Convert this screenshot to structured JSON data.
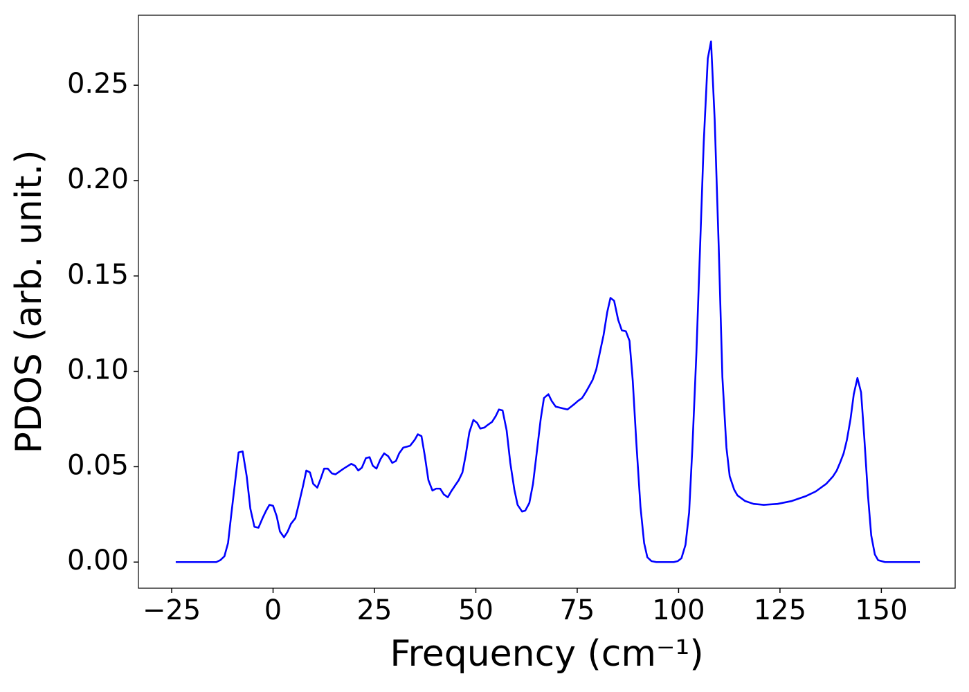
{
  "chart_data": {
    "type": "line",
    "xlabel": "Frequency (cm⁻¹)",
    "ylabel": "PDOS (arb. unit.)",
    "color": "#0000ff",
    "x": [
      -24,
      -14,
      -13,
      -12,
      -11.1,
      -10.3,
      -9.2,
      -8.5,
      -7.5,
      -6.5,
      -5.6,
      -4.6,
      -3.6,
      -2.6,
      -1.7,
      -0.9,
      0,
      0.9,
      1.7,
      2.7,
      3.6,
      4.4,
      5.5,
      6.3,
      7.4,
      8.2,
      9.1,
      9.9,
      10.9,
      11.8,
      12.6,
      13.5,
      14.5,
      15.4,
      16.4,
      17.4,
      19.3,
      20.2,
      21,
      21.9,
      22.9,
      23.8,
      24.6,
      25.5,
      26.5,
      27.4,
      28.4,
      29.4,
      30.3,
      31.1,
      32.1,
      33,
      33.8,
      34.9,
      35.7,
      36.6,
      37.4,
      38.3,
      39.3,
      40.2,
      41.2,
      42.1,
      43.1,
      43.9,
      45,
      45.8,
      46.7,
      47.5,
      48.4,
      49.4,
      50.3,
      51.1,
      52.1,
      53,
      54,
      54.9,
      55.7,
      56.6,
      57.6,
      58.5,
      59.5,
      60.3,
      61.4,
      62.2,
      63.2,
      64.1,
      65,
      66,
      66.8,
      67.9,
      68.7,
      69.7,
      71.6,
      72.6,
      73.5,
      74.4,
      75.2,
      76.2,
      77.1,
      77.9,
      78.8,
      79.7,
      80.5,
      81.5,
      82.4,
      83.2,
      84.1,
      85.1,
      86,
      87,
      87.9,
      88.7,
      89.6,
      90.6,
      91.5,
      92.3,
      93.3,
      94.5,
      98.8,
      99.8,
      100.7,
      101.7,
      102.6,
      103.4,
      104.4,
      105.3,
      106.2,
      107.2,
      108,
      108.9,
      109.9,
      110.8,
      111.8,
      112.6,
      113.7,
      114.5,
      116.4,
      118.5,
      121,
      124.4,
      127.9,
      131.3,
      133.8,
      136.4,
      138.1,
      139,
      139.8,
      140.7,
      141.5,
      142.4,
      143.2,
      144.1,
      145,
      145.8,
      146.7,
      147.5,
      148.4,
      149.2,
      150.9,
      159.5
    ],
    "values": [
      0,
      0,
      0.001,
      0.003,
      0.01,
      0.025,
      0.045,
      0.0575,
      0.058,
      0.045,
      0.028,
      0.0185,
      0.018,
      0.023,
      0.027,
      0.03,
      0.0295,
      0.024,
      0.016,
      0.013,
      0.016,
      0.02,
      0.023,
      0.03,
      0.04,
      0.048,
      0.047,
      0.041,
      0.039,
      0.044,
      0.049,
      0.049,
      0.0465,
      0.046,
      0.0475,
      0.049,
      0.0515,
      0.0505,
      0.048,
      0.0495,
      0.0545,
      0.055,
      0.0505,
      0.049,
      0.054,
      0.057,
      0.0555,
      0.052,
      0.053,
      0.057,
      0.06,
      0.0605,
      0.061,
      0.064,
      0.067,
      0.066,
      0.056,
      0.043,
      0.0375,
      0.0385,
      0.0385,
      0.0355,
      0.034,
      0.037,
      0.0405,
      0.043,
      0.047,
      0.056,
      0.068,
      0.0745,
      0.073,
      0.07,
      0.0705,
      0.072,
      0.0735,
      0.0765,
      0.08,
      0.0795,
      0.069,
      0.052,
      0.038,
      0.03,
      0.0265,
      0.027,
      0.031,
      0.041,
      0.057,
      0.075,
      0.086,
      0.088,
      0.0845,
      0.0815,
      0.0805,
      0.08,
      0.0815,
      0.083,
      0.0845,
      0.086,
      0.089,
      0.092,
      0.0955,
      0.101,
      0.109,
      0.119,
      0.131,
      0.1385,
      0.137,
      0.127,
      0.1215,
      0.121,
      0.116,
      0.095,
      0.062,
      0.029,
      0.01,
      0.0025,
      0.0005,
      0,
      0,
      0.0005,
      0.002,
      0.009,
      0.026,
      0.06,
      0.11,
      0.165,
      0.22,
      0.264,
      0.273,
      0.232,
      0.165,
      0.097,
      0.06,
      0.045,
      0.038,
      0.035,
      0.032,
      0.0305,
      0.03,
      0.0305,
      0.032,
      0.0345,
      0.037,
      0.041,
      0.045,
      0.048,
      0.052,
      0.057,
      0.064,
      0.075,
      0.088,
      0.0965,
      0.089,
      0.065,
      0.035,
      0.014,
      0.004,
      0.001,
      0,
      0
    ],
    "xlim": [
      -33.2,
      168.2
    ],
    "xticks": [
      {
        "value": -25,
        "label": "−25"
      },
      0,
      25,
      50,
      75,
      100,
      125,
      150
    ],
    "ylim": [
      -0.0137,
      0.2867
    ],
    "yticks": [
      {
        "value": 0,
        "label": "0.00"
      },
      {
        "value": 0.05,
        "label": "0.05"
      },
      {
        "value": 0.1,
        "label": "0.10"
      },
      {
        "value": 0.15,
        "label": "0.15"
      },
      {
        "value": 0.2,
        "label": "0.20"
      },
      {
        "value": 0.25,
        "label": "0.25"
      }
    ]
  }
}
